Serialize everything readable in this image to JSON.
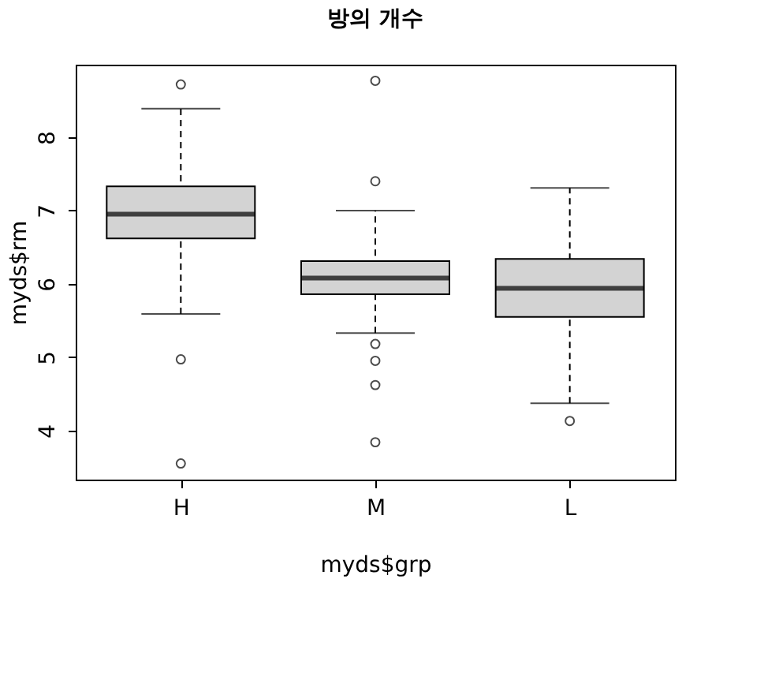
{
  "chart_data": {
    "type": "box",
    "title": "방의 개수",
    "xlabel": "myds$grp",
    "ylabel": "myds$rm",
    "categories": [
      "H",
      "M",
      "L"
    ],
    "boxes": [
      {
        "low": 5.59,
        "q1": 6.62,
        "median": 6.95,
        "q3": 7.33,
        "high": 8.39,
        "outliers": [
          8.72,
          4.97,
          3.55
        ]
      },
      {
        "low": 5.33,
        "q1": 5.86,
        "median": 6.08,
        "q3": 6.31,
        "high": 7.0,
        "outliers": [
          8.77,
          7.4,
          5.18,
          4.95,
          4.62,
          3.84
        ]
      },
      {
        "low": 4.37,
        "q1": 5.55,
        "median": 5.94,
        "q3": 6.34,
        "high": 7.31,
        "outliers": [
          4.13
        ]
      }
    ],
    "color": "#d3d3d3",
    "ylim": [
      3.33,
      8.99
    ],
    "yticks": [
      4,
      5,
      6,
      7,
      8
    ],
    "grid": false
  }
}
